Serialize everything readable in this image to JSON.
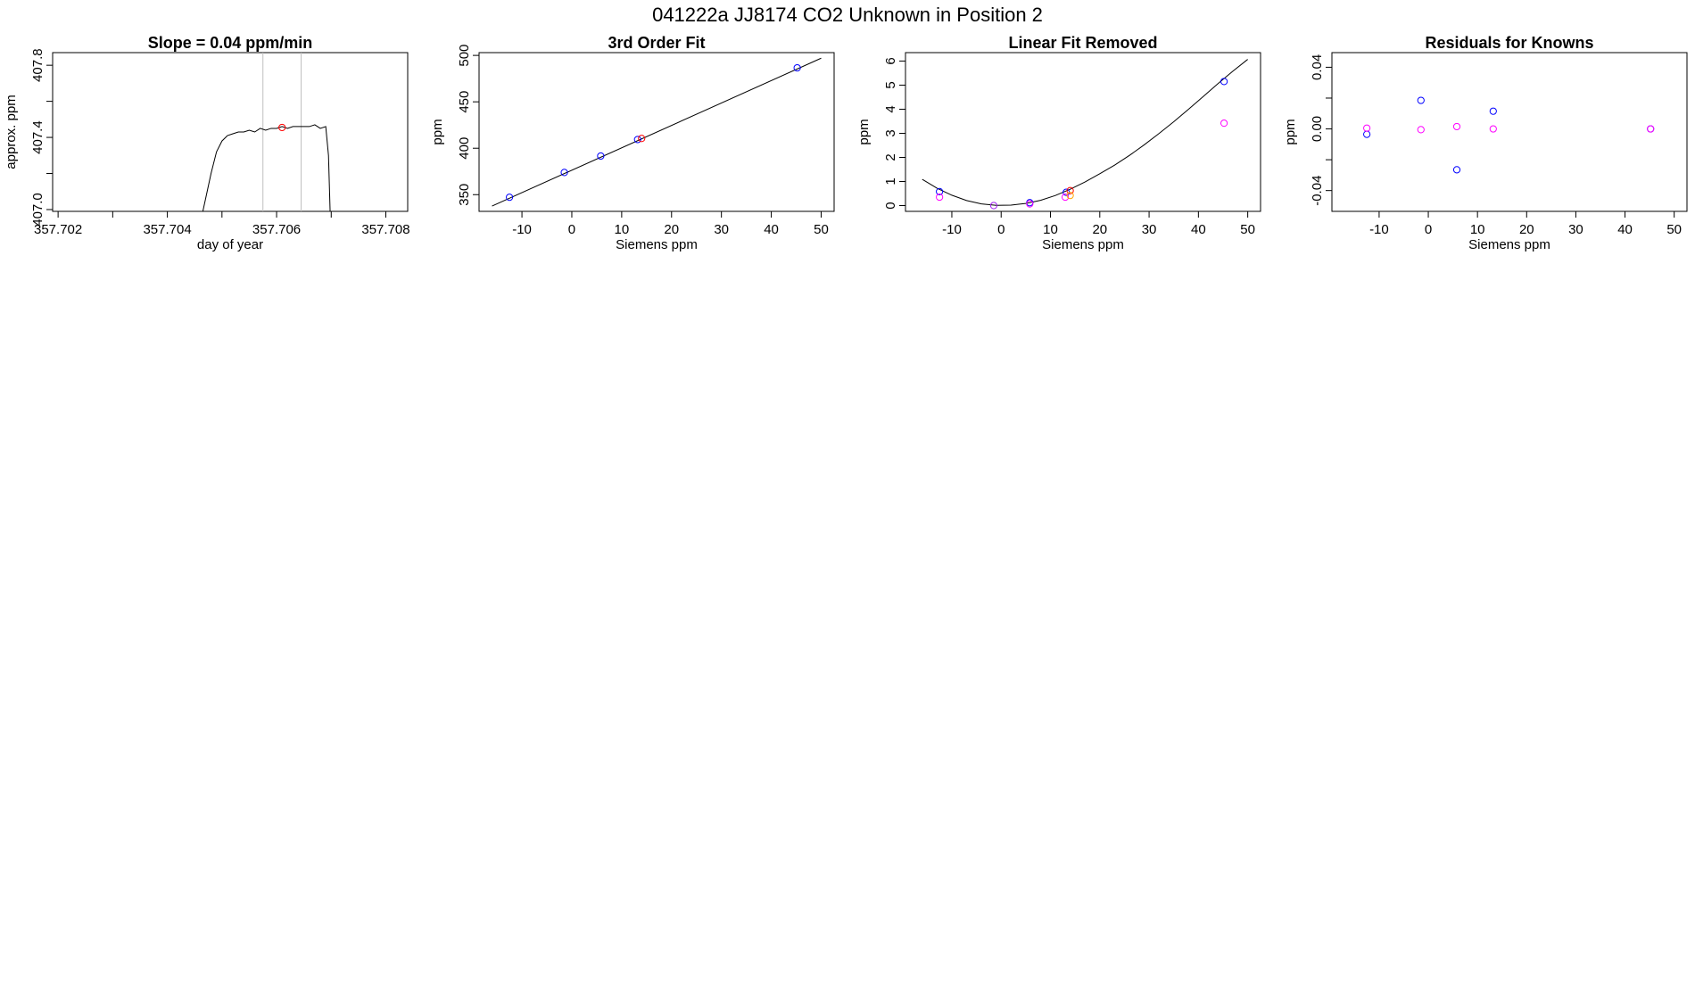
{
  "page_title": "041222a      JJ8174   CO2 Unknown in Position  2",
  "colors": {
    "blue": "#0000ff",
    "red": "#ff0000",
    "magenta": "#ff00ff",
    "purple": "#a020f0",
    "orange": "#ffa500",
    "grid": "#bebebe",
    "line": "#000000"
  },
  "chart_data": [
    {
      "type": "line",
      "title": "Slope =  0.04  ppm/min",
      "xlabel": "day of year",
      "ylabel": "approx. ppm",
      "xlim": [
        357.7019,
        357.7084
      ],
      "ylim": [
        406.99,
        407.87
      ],
      "xticks": [
        357.702,
        357.703,
        357.704,
        357.705,
        357.706,
        357.707,
        357.708
      ],
      "xtick_labels": [
        "357.702",
        "",
        "357.704",
        "",
        "357.706",
        "",
        "357.708"
      ],
      "yticks": [
        407.0,
        407.2,
        407.4,
        407.6,
        407.8
      ],
      "ytick_labels": [
        "407.0",
        "",
        "407.4",
        "",
        "407.8"
      ],
      "vlines": [
        357.70575,
        357.70645
      ],
      "series": [
        {
          "x": [
            357.70465,
            357.7047,
            357.7048,
            357.7049,
            357.705,
            357.7051,
            357.7052,
            357.7053,
            357.7054,
            357.7055,
            357.7056,
            357.7057,
            357.7058,
            357.7059,
            357.706,
            357.7061,
            357.7062,
            357.7063,
            357.7064,
            357.7065,
            357.7066,
            357.7067,
            357.7068,
            357.7069,
            357.70695,
            357.70698
          ],
          "y": [
            406.99,
            407.06,
            407.2,
            407.32,
            407.38,
            407.41,
            407.42,
            407.43,
            407.43,
            407.44,
            407.43,
            407.45,
            407.44,
            407.45,
            407.45,
            407.46,
            407.45,
            407.46,
            407.46,
            407.46,
            407.46,
            407.47,
            407.45,
            407.46,
            407.3,
            406.99
          ]
        }
      ],
      "points": [
        {
          "x": 357.7061,
          "y": 407.455,
          "color": "red"
        }
      ]
    },
    {
      "type": "scatter",
      "title": "3rd Order Fit",
      "xlabel": "Siemens ppm",
      "ylabel": "ppm",
      "xlim": [
        -18.6,
        52.6
      ],
      "ylim": [
        332,
        503
      ],
      "xticks": [
        -10,
        0,
        10,
        20,
        30,
        40,
        50
      ],
      "xtick_labels": [
        "-10",
        "0",
        "10",
        "20",
        "30",
        "40",
        "50"
      ],
      "yticks": [
        350,
        400,
        450,
        500
      ],
      "ytick_labels": [
        "350",
        "400",
        "450",
        "500"
      ],
      "curve": {
        "x": [
          -16,
          50
        ],
        "y": [
          337.7,
          497.0
        ]
      },
      "points": [
        {
          "x": -12.5,
          "y": 347.2,
          "color": "blue"
        },
        {
          "x": -1.5,
          "y": 373.9,
          "color": "blue"
        },
        {
          "x": 5.8,
          "y": 391.6,
          "color": "blue"
        },
        {
          "x": 13.2,
          "y": 409.4,
          "color": "blue"
        },
        {
          "x": 14.0,
          "y": 410.5,
          "color": "red"
        },
        {
          "x": 45.2,
          "y": 486.6,
          "color": "blue"
        }
      ]
    },
    {
      "type": "scatter",
      "title": "Linear Fit Removed",
      "xlabel": "Siemens ppm",
      "ylabel": "ppm",
      "xlim": [
        -19.4,
        52.6
      ],
      "ylim": [
        -0.24,
        6.35
      ],
      "xticks": [
        -10,
        0,
        10,
        20,
        30,
        40,
        50
      ],
      "xtick_labels": [
        "-10",
        "0",
        "10",
        "20",
        "30",
        "40",
        "50"
      ],
      "yticks": [
        0,
        1,
        2,
        3,
        4,
        5,
        6
      ],
      "ytick_labels": [
        "0",
        "1",
        "2",
        "3",
        "4",
        "5",
        "6"
      ],
      "curve": {
        "x": [
          -16,
          -13,
          -10,
          -7,
          -4,
          -1,
          2,
          5,
          8,
          11,
          14,
          17,
          20,
          23,
          26,
          29,
          32,
          35,
          38,
          41,
          44,
          47,
          50
        ],
        "y": [
          1.09,
          0.72,
          0.43,
          0.21,
          0.07,
          0.01,
          0.02,
          0.09,
          0.22,
          0.42,
          0.68,
          0.98,
          1.32,
          1.68,
          2.08,
          2.52,
          2.99,
          3.48,
          4.0,
          4.53,
          5.07,
          5.58,
          6.07
        ]
      },
      "points": [
        {
          "x": -12.5,
          "y": 0.58,
          "color": "blue"
        },
        {
          "x": -12.5,
          "y": 0.35,
          "color": "magenta"
        },
        {
          "x": -1.5,
          "y": 0.0,
          "color": "purple"
        },
        {
          "x": 5.8,
          "y": 0.12,
          "color": "blue"
        },
        {
          "x": 5.8,
          "y": 0.07,
          "color": "magenta"
        },
        {
          "x": 13.2,
          "y": 0.55,
          "color": "blue"
        },
        {
          "x": 13.0,
          "y": 0.35,
          "color": "magenta"
        },
        {
          "x": 14.0,
          "y": 0.62,
          "color": "red"
        },
        {
          "x": 14.0,
          "y": 0.42,
          "color": "orange"
        },
        {
          "x": 45.2,
          "y": 5.15,
          "color": "blue"
        },
        {
          "x": 45.2,
          "y": 3.42,
          "color": "magenta"
        }
      ]
    },
    {
      "type": "scatter",
      "title": "Residuals for Knowns",
      "xlabel": "Siemens ppm",
      "ylabel": "ppm",
      "xlim": [
        -19.6,
        52.6
      ],
      "ylim": [
        -0.0535,
        0.0495
      ],
      "xticks": [
        -10,
        0,
        10,
        20,
        30,
        40,
        50
      ],
      "xtick_labels": [
        "-10",
        "0",
        "10",
        "20",
        "30",
        "40",
        "50"
      ],
      "yticks": [
        -0.04,
        -0.02,
        0.0,
        0.02,
        0.04
      ],
      "ytick_labels": [
        "-0.04",
        "",
        "0.00",
        "",
        "0.04"
      ],
      "points": [
        {
          "x": -12.5,
          "y": -0.0035,
          "color": "blue"
        },
        {
          "x": -12.5,
          "y": 0.0005,
          "color": "magenta"
        },
        {
          "x": -1.5,
          "y": 0.0185,
          "color": "blue"
        },
        {
          "x": -1.5,
          "y": -0.0005,
          "color": "magenta"
        },
        {
          "x": 5.8,
          "y": -0.0265,
          "color": "blue"
        },
        {
          "x": 5.8,
          "y": 0.0015,
          "color": "magenta"
        },
        {
          "x": 13.2,
          "y": 0.0115,
          "color": "blue"
        },
        {
          "x": 13.2,
          "y": 0.0,
          "color": "magenta"
        },
        {
          "x": 45.2,
          "y": 0.0,
          "color": "blue"
        },
        {
          "x": 45.2,
          "y": 0.0,
          "color": "magenta"
        }
      ]
    }
  ]
}
